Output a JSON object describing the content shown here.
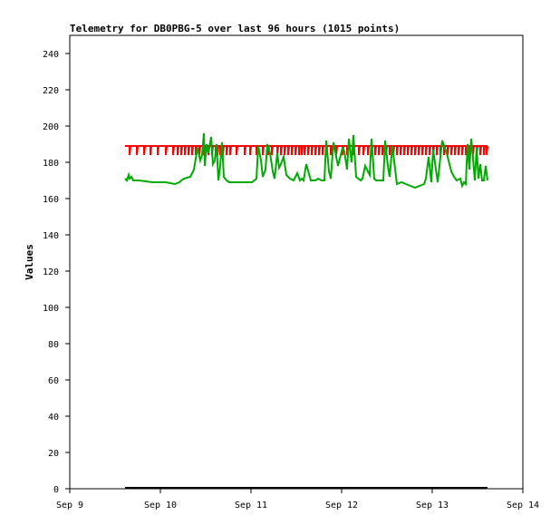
{
  "chart_data": {
    "type": "line",
    "title": "Telemetry for DB0PBG-5 over last 96 hours (1015 points)",
    "xlabel": "",
    "ylabel": "Values",
    "xlim": [
      "Sep 9",
      "Sep 14"
    ],
    "ylim": [
      0,
      250
    ],
    "x_ticks": [
      "Sep 9",
      "Sep 10",
      "Sep 11",
      "Sep 12",
      "Sep 13",
      "Sep 14"
    ],
    "y_ticks": [
      0,
      20,
      40,
      60,
      80,
      100,
      120,
      140,
      160,
      180,
      200,
      220,
      240
    ],
    "grid": false,
    "legend": "none",
    "series": [
      {
        "color": "#ff0000",
        "baseline": 189,
        "x": [
          "Sep 9 14:40",
          "Sep 13 14:40"
        ],
        "values": [
          189,
          189
        ],
        "dips_to": 184,
        "dips_at_day_fraction": [
          0.05,
          0.13,
          0.21,
          0.28,
          0.36,
          0.45,
          0.53,
          0.58,
          0.62,
          0.66,
          0.7,
          0.74,
          0.78,
          0.82,
          0.86,
          0.89,
          0.92,
          0.96,
          1.0,
          1.02,
          1.05,
          1.08,
          1.12,
          1.16,
          1.23,
          1.32,
          1.38,
          1.45,
          1.52,
          1.58,
          1.62,
          1.68,
          1.72,
          1.76,
          1.8,
          1.84,
          1.88,
          1.92,
          1.95,
          1.98,
          2.02,
          2.06,
          2.1,
          2.14,
          2.18,
          2.22,
          2.27,
          2.33,
          2.4,
          2.45,
          2.52,
          2.58,
          2.63,
          2.68,
          2.72,
          2.76,
          2.8,
          2.84,
          2.88,
          2.92,
          2.96,
          3.0,
          3.04,
          3.08,
          3.12,
          3.16,
          3.2,
          3.24,
          3.28,
          3.32,
          3.36,
          3.4,
          3.44,
          3.48,
          3.52,
          3.56,
          3.6,
          3.64,
          3.68,
          3.72,
          3.76,
          3.8,
          3.84,
          3.88,
          3.92,
          3.96,
          3.99
        ]
      },
      {
        "color": "#00aa00",
        "x_day_fraction": [
          0.0,
          0.02,
          0.04,
          0.05,
          0.07,
          0.09,
          0.1,
          0.12,
          0.16,
          0.3,
          0.45,
          0.55,
          0.6,
          0.62,
          0.65,
          0.72,
          0.76,
          0.78,
          0.8,
          0.83,
          0.85,
          0.87,
          0.88,
          0.9,
          0.92,
          0.95,
          0.97,
          0.99,
          1.01,
          1.03,
          1.05,
          1.07,
          1.09,
          1.12,
          1.15,
          1.2,
          1.25,
          1.3,
          1.35,
          1.4,
          1.45,
          1.47,
          1.5,
          1.52,
          1.55,
          1.57,
          1.6,
          1.63,
          1.65,
          1.68,
          1.7,
          1.72,
          1.75,
          1.78,
          1.82,
          1.86,
          1.9,
          1.93,
          1.95,
          1.97,
          2.0,
          2.05,
          2.1,
          2.13,
          2.17,
          2.2,
          2.22,
          2.25,
          2.27,
          2.3,
          2.35,
          2.4,
          2.42,
          2.45,
          2.47,
          2.5,
          2.52,
          2.55,
          2.6,
          2.62,
          2.65,
          2.7,
          2.72,
          2.75,
          2.77,
          2.8,
          2.83,
          2.85,
          2.87,
          2.9,
          2.92,
          2.95,
          3.0,
          3.05,
          3.1,
          3.15,
          3.2,
          3.25,
          3.3,
          3.32,
          3.35,
          3.38,
          3.4,
          3.45,
          3.5,
          3.55,
          3.6,
          3.63,
          3.66,
          3.7,
          3.72,
          3.74,
          3.76,
          3.78,
          3.8,
          3.82,
          3.84,
          3.86,
          3.88,
          3.9,
          3.92,
          3.94,
          3.96,
          3.98,
          4.0
        ],
        "values": [
          171,
          170,
          173,
          171,
          172,
          170,
          170,
          170,
          170,
          169,
          169,
          168,
          169,
          170,
          171,
          172,
          176,
          182,
          188,
          181,
          184,
          196,
          178,
          190,
          185,
          194,
          179,
          181,
          190,
          170,
          178,
          191,
          172,
          170,
          169,
          169,
          169,
          169,
          169,
          169,
          171,
          189,
          181,
          172,
          176,
          190,
          185,
          175,
          171,
          185,
          177,
          179,
          183,
          173,
          171,
          170,
          174,
          170,
          171,
          170,
          179,
          170,
          170,
          171,
          170,
          170,
          192,
          175,
          171,
          191,
          178,
          188,
          186,
          176,
          193,
          180,
          195,
          172,
          170,
          171,
          178,
          173,
          193,
          171,
          170,
          170,
          170,
          170,
          192,
          178,
          172,
          189,
          168,
          169,
          168,
          167,
          166,
          167,
          168,
          171,
          183,
          169,
          187,
          169,
          192,
          185,
          175,
          172,
          170,
          171,
          167,
          169,
          168,
          190,
          176,
          193,
          182,
          170,
          188,
          171,
          179,
          170,
          170,
          178,
          170
        ]
      },
      {
        "color": "#000000",
        "x": [
          "Sep 9 14:40",
          "Sep 13 14:40"
        ],
        "values": [
          0,
          0
        ]
      }
    ]
  }
}
